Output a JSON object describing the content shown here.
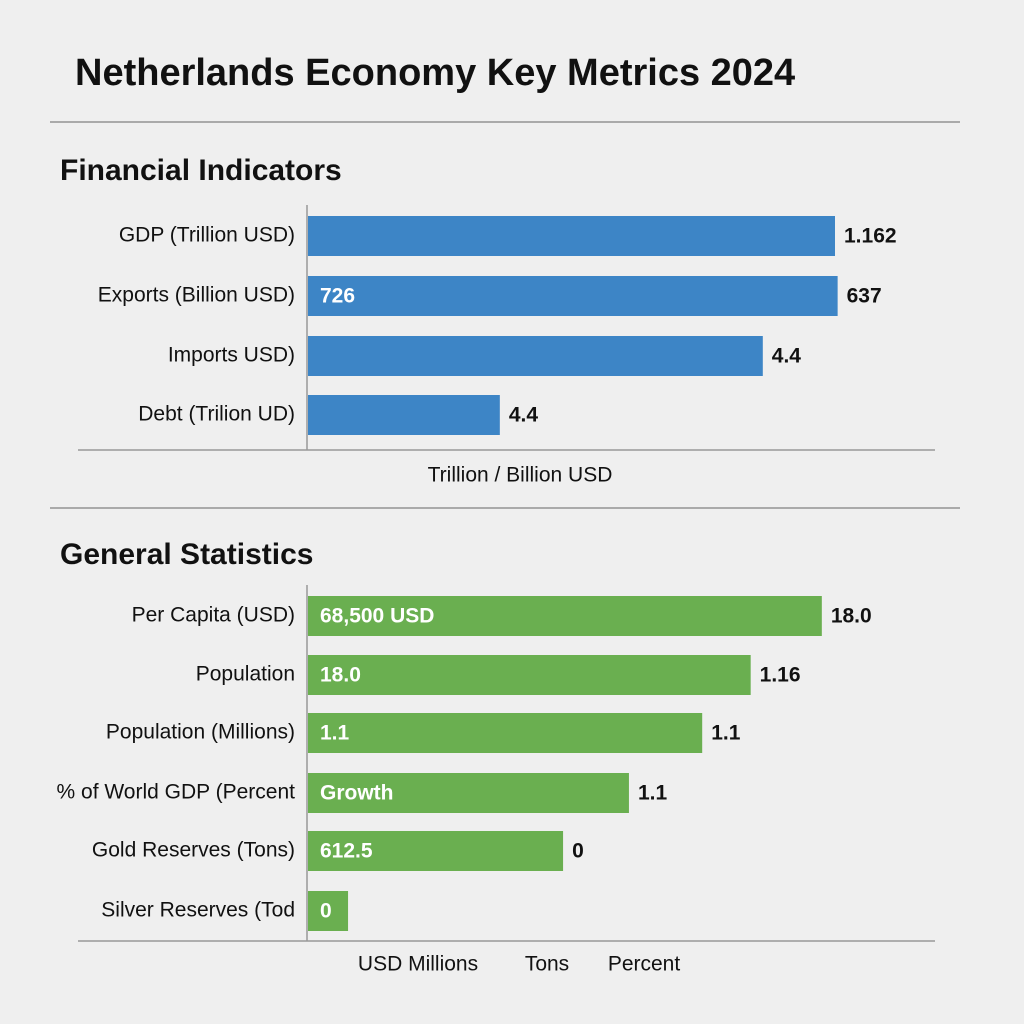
{
  "title": "Netherlands Economy Key Metrics 2024",
  "chart_data": [
    {
      "type": "bar",
      "orientation": "horizontal",
      "title": "Financial Indicators",
      "color": "#3d85c6",
      "categories": [
        "GDP (Trillion USD)",
        "Exports (Billion USD)",
        "Imports USD)",
        "Debt (Trilion UD)"
      ],
      "values": [
        100,
        100.5,
        86.3,
        36.4
      ],
      "inner_labels": [
        null,
        "726",
        null,
        null
      ],
      "outer_labels": [
        "1.162",
        "637",
        "4.4",
        "4.4"
      ],
      "axis_labels": [
        "Trillion / Billion USD"
      ]
    },
    {
      "type": "bar",
      "orientation": "horizontal",
      "title": "General Statistics",
      "color": "#6aaf50",
      "categories": [
        "Per Capita (USD)",
        "Population",
        "Population (Millions)",
        "% of World GDP (Percent",
        "Gold Reserves (Tons)",
        "Silver Reserves (Tod"
      ],
      "values": [
        97.5,
        84,
        74.8,
        60.9,
        48.4,
        7.6
      ],
      "inner_labels": [
        "68,500 USD",
        "18.0",
        "1.1",
        "Growth",
        "612.5",
        "0"
      ],
      "outer_labels": [
        "18.0",
        "1.16",
        "1.1",
        "1.1",
        "0",
        null
      ],
      "axis_labels": [
        "USD Millions",
        "Tons",
        "Percent"
      ]
    }
  ]
}
